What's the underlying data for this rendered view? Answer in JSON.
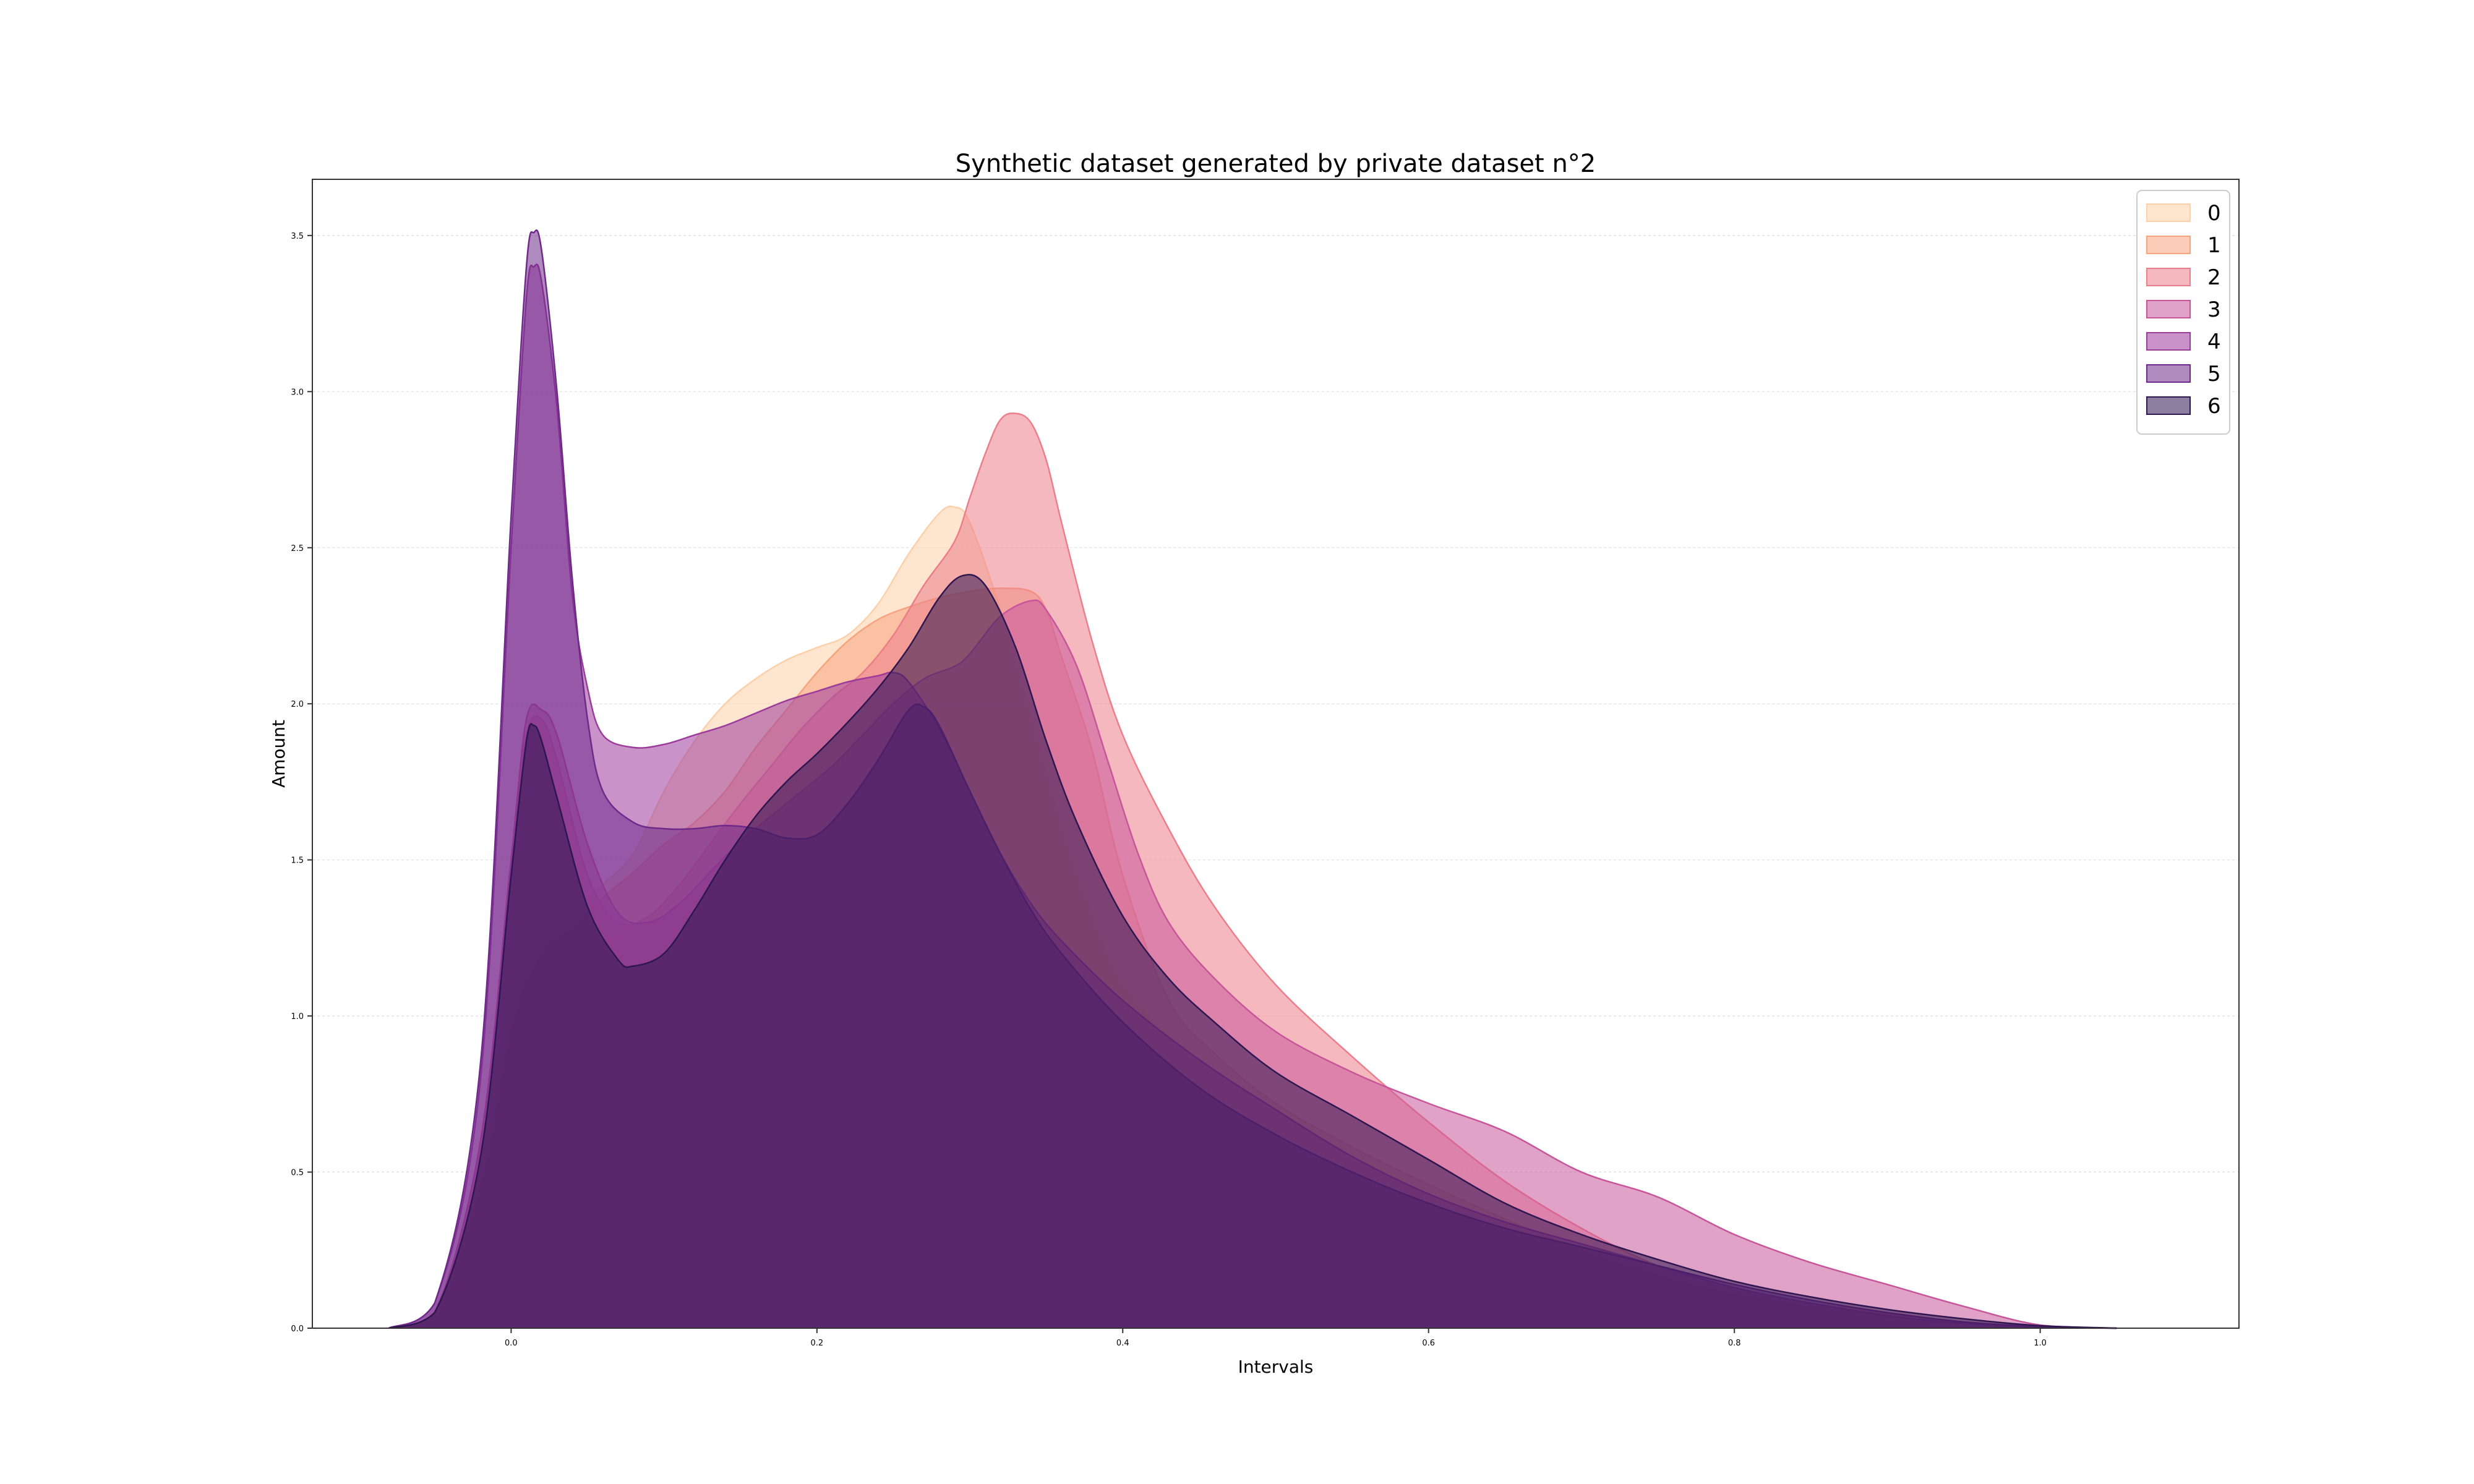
{
  "chart_data": {
    "type": "area",
    "title": "Synthetic dataset generated by private dataset n°2",
    "xlabel": "Intervals",
    "ylabel": "Amount",
    "xlim": [
      -0.13,
      1.13
    ],
    "ylim": [
      0,
      3.68
    ],
    "xticks": [
      0.0,
      0.2,
      0.4,
      0.6,
      0.8,
      1.0
    ],
    "xtick_labels": [
      "0.0",
      "0.2",
      "0.4",
      "0.6",
      "0.8",
      "1.0"
    ],
    "yticks": [
      0.0,
      0.5,
      1.0,
      1.5,
      2.0,
      2.5,
      3.0,
      3.5
    ],
    "ytick_labels": [
      "0.0",
      "0.5",
      "1.0",
      "1.5",
      "2.0",
      "2.5",
      "3.0",
      "3.5"
    ],
    "grid": "horizontal-dashed",
    "legend": "top-right",
    "series": [
      {
        "name": "0",
        "color": "#fcd0a8",
        "points": [
          [
            -0.08,
            0.0
          ],
          [
            -0.05,
            0.05
          ],
          [
            -0.02,
            0.45
          ],
          [
            0.0,
            0.95
          ],
          [
            0.02,
            1.25
          ],
          [
            0.04,
            1.32
          ],
          [
            0.06,
            1.42
          ],
          [
            0.08,
            1.52
          ],
          [
            0.1,
            1.72
          ],
          [
            0.12,
            1.88
          ],
          [
            0.14,
            2.0
          ],
          [
            0.16,
            2.08
          ],
          [
            0.18,
            2.14
          ],
          [
            0.2,
            2.18
          ],
          [
            0.22,
            2.22
          ],
          [
            0.24,
            2.32
          ],
          [
            0.26,
            2.48
          ],
          [
            0.28,
            2.61
          ],
          [
            0.29,
            2.63
          ],
          [
            0.3,
            2.58
          ],
          [
            0.32,
            2.3
          ],
          [
            0.34,
            1.95
          ],
          [
            0.36,
            1.6
          ],
          [
            0.38,
            1.32
          ],
          [
            0.4,
            1.1
          ],
          [
            0.45,
            0.82
          ],
          [
            0.5,
            0.62
          ],
          [
            0.55,
            0.48
          ],
          [
            0.6,
            0.4
          ],
          [
            0.65,
            0.31
          ],
          [
            0.7,
            0.24
          ],
          [
            0.75,
            0.18
          ],
          [
            0.8,
            0.12
          ],
          [
            0.85,
            0.08
          ],
          [
            0.9,
            0.05
          ],
          [
            0.95,
            0.02
          ],
          [
            1.0,
            0.005
          ],
          [
            1.05,
            0.0
          ]
        ]
      },
      {
        "name": "1",
        "color": "#f7a47e",
        "points": [
          [
            -0.08,
            0.0
          ],
          [
            -0.05,
            0.05
          ],
          [
            -0.02,
            0.45
          ],
          [
            0.0,
            0.95
          ],
          [
            0.02,
            1.2
          ],
          [
            0.04,
            1.28
          ],
          [
            0.06,
            1.38
          ],
          [
            0.08,
            1.46
          ],
          [
            0.1,
            1.55
          ],
          [
            0.12,
            1.62
          ],
          [
            0.14,
            1.72
          ],
          [
            0.16,
            1.86
          ],
          [
            0.18,
            1.98
          ],
          [
            0.2,
            2.1
          ],
          [
            0.22,
            2.2
          ],
          [
            0.24,
            2.27
          ],
          [
            0.26,
            2.31
          ],
          [
            0.28,
            2.34
          ],
          [
            0.3,
            2.36
          ],
          [
            0.32,
            2.37
          ],
          [
            0.34,
            2.36
          ],
          [
            0.35,
            2.3
          ],
          [
            0.36,
            2.15
          ],
          [
            0.38,
            1.85
          ],
          [
            0.4,
            1.45
          ],
          [
            0.43,
            1.05
          ],
          [
            0.46,
            0.88
          ],
          [
            0.5,
            0.72
          ],
          [
            0.55,
            0.58
          ],
          [
            0.6,
            0.46
          ],
          [
            0.65,
            0.35
          ],
          [
            0.7,
            0.25
          ],
          [
            0.75,
            0.17
          ],
          [
            0.8,
            0.11
          ],
          [
            0.85,
            0.07
          ],
          [
            0.9,
            0.04
          ],
          [
            0.95,
            0.02
          ],
          [
            1.0,
            0.005
          ],
          [
            1.05,
            0.0
          ]
        ]
      },
      {
        "name": "2",
        "color": "#ec7d8a",
        "points": [
          [
            -0.08,
            0.0
          ],
          [
            -0.05,
            0.05
          ],
          [
            -0.02,
            0.6
          ],
          [
            0.0,
            1.5
          ],
          [
            0.01,
            1.9
          ],
          [
            0.02,
            1.95
          ],
          [
            0.03,
            1.82
          ],
          [
            0.05,
            1.45
          ],
          [
            0.07,
            1.3
          ],
          [
            0.09,
            1.32
          ],
          [
            0.11,
            1.42
          ],
          [
            0.13,
            1.55
          ],
          [
            0.15,
            1.68
          ],
          [
            0.17,
            1.8
          ],
          [
            0.19,
            1.92
          ],
          [
            0.21,
            2.02
          ],
          [
            0.23,
            2.1
          ],
          [
            0.25,
            2.22
          ],
          [
            0.27,
            2.38
          ],
          [
            0.29,
            2.52
          ],
          [
            0.3,
            2.66
          ],
          [
            0.31,
            2.8
          ],
          [
            0.32,
            2.91
          ],
          [
            0.33,
            2.93
          ],
          [
            0.34,
            2.9
          ],
          [
            0.35,
            2.78
          ],
          [
            0.36,
            2.58
          ],
          [
            0.38,
            2.2
          ],
          [
            0.4,
            1.9
          ],
          [
            0.43,
            1.6
          ],
          [
            0.46,
            1.35
          ],
          [
            0.5,
            1.1
          ],
          [
            0.55,
            0.87
          ],
          [
            0.6,
            0.66
          ],
          [
            0.65,
            0.47
          ],
          [
            0.7,
            0.32
          ],
          [
            0.75,
            0.2
          ],
          [
            0.8,
            0.13
          ],
          [
            0.85,
            0.08
          ],
          [
            0.9,
            0.045
          ],
          [
            0.95,
            0.02
          ],
          [
            1.0,
            0.005
          ],
          [
            1.05,
            0.0
          ]
        ]
      },
      {
        "name": "3",
        "color": "#c8559a",
        "points": [
          [
            -0.08,
            0.0
          ],
          [
            -0.05,
            0.05
          ],
          [
            -0.02,
            0.6
          ],
          [
            0.0,
            1.5
          ],
          [
            0.01,
            1.95
          ],
          [
            0.02,
            1.98
          ],
          [
            0.03,
            1.9
          ],
          [
            0.05,
            1.55
          ],
          [
            0.07,
            1.33
          ],
          [
            0.09,
            1.3
          ],
          [
            0.11,
            1.36
          ],
          [
            0.13,
            1.46
          ],
          [
            0.15,
            1.56
          ],
          [
            0.17,
            1.64
          ],
          [
            0.19,
            1.72
          ],
          [
            0.21,
            1.8
          ],
          [
            0.23,
            1.9
          ],
          [
            0.25,
            2.0
          ],
          [
            0.27,
            2.08
          ],
          [
            0.29,
            2.12
          ],
          [
            0.3,
            2.16
          ],
          [
            0.32,
            2.28
          ],
          [
            0.34,
            2.33
          ],
          [
            0.35,
            2.3
          ],
          [
            0.37,
            2.12
          ],
          [
            0.39,
            1.82
          ],
          [
            0.41,
            1.52
          ],
          [
            0.43,
            1.3
          ],
          [
            0.46,
            1.12
          ],
          [
            0.5,
            0.95
          ],
          [
            0.55,
            0.82
          ],
          [
            0.6,
            0.72
          ],
          [
            0.65,
            0.63
          ],
          [
            0.7,
            0.5
          ],
          [
            0.75,
            0.42
          ],
          [
            0.8,
            0.3
          ],
          [
            0.85,
            0.21
          ],
          [
            0.9,
            0.14
          ],
          [
            0.95,
            0.07
          ],
          [
            1.0,
            0.01
          ],
          [
            1.05,
            0.0
          ]
        ]
      },
      {
        "name": "4",
        "color": "#9c3b9c",
        "points": [
          [
            -0.08,
            0.0
          ],
          [
            -0.05,
            0.08
          ],
          [
            -0.02,
            0.8
          ],
          [
            0.0,
            2.5
          ],
          [
            0.01,
            3.3
          ],
          [
            0.015,
            3.4
          ],
          [
            0.02,
            3.35
          ],
          [
            0.03,
            2.95
          ],
          [
            0.04,
            2.35
          ],
          [
            0.05,
            2.05
          ],
          [
            0.06,
            1.9
          ],
          [
            0.08,
            1.86
          ],
          [
            0.1,
            1.87
          ],
          [
            0.12,
            1.9
          ],
          [
            0.14,
            1.93
          ],
          [
            0.16,
            1.97
          ],
          [
            0.18,
            2.01
          ],
          [
            0.2,
            2.04
          ],
          [
            0.22,
            2.07
          ],
          [
            0.24,
            2.09
          ],
          [
            0.25,
            2.1
          ],
          [
            0.26,
            2.07
          ],
          [
            0.28,
            1.92
          ],
          [
            0.3,
            1.72
          ],
          [
            0.32,
            1.52
          ],
          [
            0.34,
            1.36
          ],
          [
            0.36,
            1.24
          ],
          [
            0.4,
            1.05
          ],
          [
            0.45,
            0.86
          ],
          [
            0.5,
            0.7
          ],
          [
            0.55,
            0.55
          ],
          [
            0.6,
            0.43
          ],
          [
            0.65,
            0.34
          ],
          [
            0.7,
            0.27
          ],
          [
            0.75,
            0.2
          ],
          [
            0.8,
            0.13
          ],
          [
            0.85,
            0.08
          ],
          [
            0.9,
            0.04
          ],
          [
            0.95,
            0.015
          ],
          [
            1.0,
            0.003
          ],
          [
            1.05,
            0.0
          ]
        ]
      },
      {
        "name": "5",
        "color": "#6e2a8a",
        "points": [
          [
            -0.08,
            0.0
          ],
          [
            -0.05,
            0.08
          ],
          [
            -0.02,
            0.85
          ],
          [
            0.0,
            2.6
          ],
          [
            0.01,
            3.4
          ],
          [
            0.015,
            3.51
          ],
          [
            0.02,
            3.45
          ],
          [
            0.03,
            3.0
          ],
          [
            0.04,
            2.4
          ],
          [
            0.05,
            1.95
          ],
          [
            0.06,
            1.72
          ],
          [
            0.08,
            1.62
          ],
          [
            0.1,
            1.6
          ],
          [
            0.12,
            1.6
          ],
          [
            0.14,
            1.61
          ],
          [
            0.16,
            1.6
          ],
          [
            0.18,
            1.57
          ],
          [
            0.2,
            1.58
          ],
          [
            0.22,
            1.68
          ],
          [
            0.24,
            1.82
          ],
          [
            0.26,
            1.98
          ],
          [
            0.27,
            1.99
          ],
          [
            0.28,
            1.93
          ],
          [
            0.3,
            1.72
          ],
          [
            0.32,
            1.52
          ],
          [
            0.34,
            1.34
          ],
          [
            0.36,
            1.2
          ],
          [
            0.4,
            0.98
          ],
          [
            0.45,
            0.77
          ],
          [
            0.5,
            0.62
          ],
          [
            0.55,
            0.5
          ],
          [
            0.6,
            0.4
          ],
          [
            0.65,
            0.32
          ],
          [
            0.7,
            0.26
          ],
          [
            0.75,
            0.2
          ],
          [
            0.8,
            0.14
          ],
          [
            0.85,
            0.09
          ],
          [
            0.9,
            0.05
          ],
          [
            0.95,
            0.02
          ],
          [
            1.0,
            0.005
          ],
          [
            1.05,
            0.0
          ]
        ]
      },
      {
        "name": "6",
        "color": "#2f1650",
        "points": [
          [
            -0.08,
            0.0
          ],
          [
            -0.05,
            0.05
          ],
          [
            -0.02,
            0.55
          ],
          [
            0.0,
            1.45
          ],
          [
            0.01,
            1.88
          ],
          [
            0.015,
            1.93
          ],
          [
            0.02,
            1.88
          ],
          [
            0.03,
            1.7
          ],
          [
            0.05,
            1.35
          ],
          [
            0.07,
            1.18
          ],
          [
            0.08,
            1.16
          ],
          [
            0.1,
            1.2
          ],
          [
            0.12,
            1.34
          ],
          [
            0.14,
            1.5
          ],
          [
            0.16,
            1.64
          ],
          [
            0.18,
            1.75
          ],
          [
            0.2,
            1.84
          ],
          [
            0.22,
            1.94
          ],
          [
            0.24,
            2.05
          ],
          [
            0.26,
            2.18
          ],
          [
            0.28,
            2.34
          ],
          [
            0.295,
            2.41
          ],
          [
            0.31,
            2.38
          ],
          [
            0.33,
            2.18
          ],
          [
            0.35,
            1.88
          ],
          [
            0.37,
            1.62
          ],
          [
            0.4,
            1.32
          ],
          [
            0.43,
            1.12
          ],
          [
            0.46,
            0.98
          ],
          [
            0.5,
            0.82
          ],
          [
            0.55,
            0.68
          ],
          [
            0.6,
            0.54
          ],
          [
            0.65,
            0.4
          ],
          [
            0.7,
            0.3
          ],
          [
            0.75,
            0.22
          ],
          [
            0.8,
            0.15
          ],
          [
            0.85,
            0.1
          ],
          [
            0.9,
            0.06
          ],
          [
            0.95,
            0.03
          ],
          [
            1.0,
            0.008
          ],
          [
            1.05,
            0.0
          ]
        ]
      }
    ]
  }
}
